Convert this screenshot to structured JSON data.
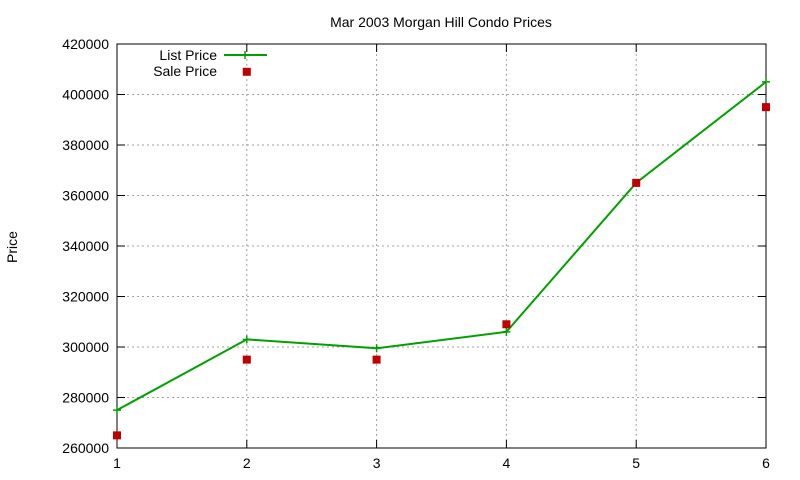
{
  "chart_data": {
    "type": "line",
    "title": "Mar 2003 Morgan Hill Condo Prices",
    "xlabel": "",
    "ylabel": "Price",
    "xlim": [
      1,
      6
    ],
    "ylim": [
      260000,
      420000
    ],
    "x_ticks": [
      1,
      2,
      3,
      4,
      5,
      6
    ],
    "y_ticks": [
      260000,
      280000,
      300000,
      320000,
      340000,
      360000,
      380000,
      400000,
      420000
    ],
    "grid": true,
    "legend_position": "top-left",
    "series": [
      {
        "name": "List Price",
        "style": "line-plus",
        "color": "#00a000",
        "points": [
          {
            "x": 1,
            "y": 275000
          },
          {
            "x": 2,
            "y": 303000
          },
          {
            "x": 3,
            "y": 299500
          },
          {
            "x": 4,
            "y": 306000
          },
          {
            "x": 5,
            "y": 365000
          },
          {
            "x": 6,
            "y": 405000
          }
        ]
      },
      {
        "name": "Sale Price",
        "style": "square-points",
        "color": "#c00000",
        "points": [
          {
            "x": 1,
            "y": 265000
          },
          {
            "x": 2,
            "y": 409000
          },
          {
            "x": 2,
            "y": 295000
          },
          {
            "x": 3,
            "y": 295000
          },
          {
            "x": 4,
            "y": 309000
          },
          {
            "x": 5,
            "y": 365000
          },
          {
            "x": 6,
            "y": 395000
          }
        ]
      }
    ]
  }
}
